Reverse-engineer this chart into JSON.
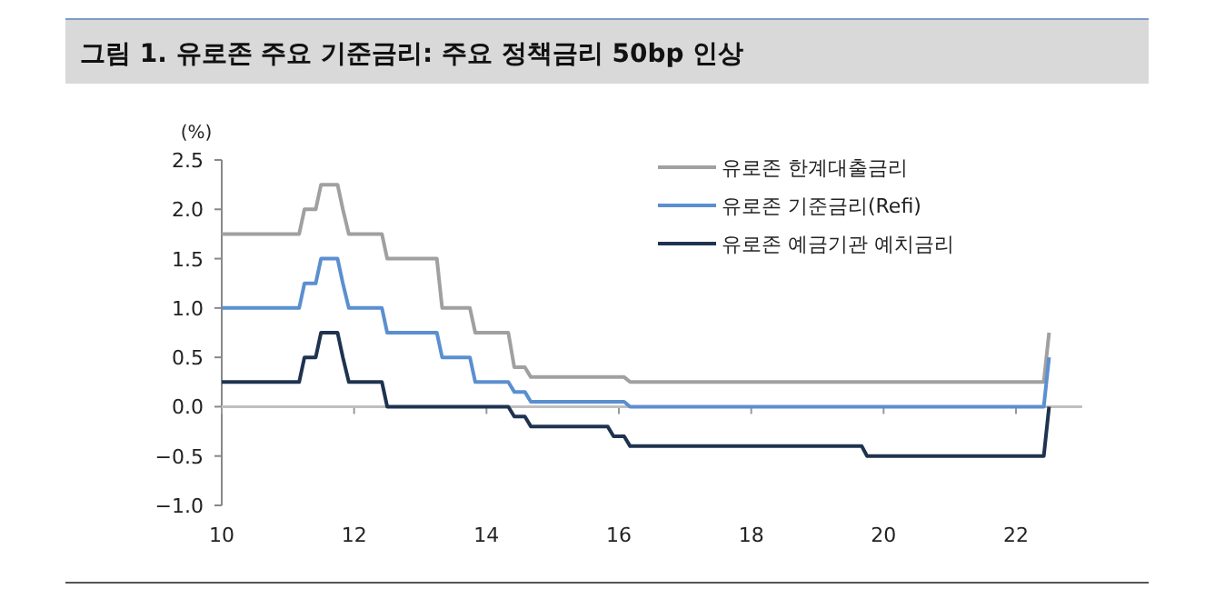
{
  "chart_data": {
    "type": "line",
    "title": "그림 1. 유로존 주요 기준금리: 주요 정책금리 50bp 인상",
    "ylabel": "(%)",
    "xlim": [
      10,
      23
    ],
    "xticks": [
      10,
      12,
      14,
      16,
      18,
      20,
      22
    ],
    "ylim": [
      -1,
      2.5
    ],
    "yticks": [
      {
        "value": 2.5,
        "label": "2.5"
      },
      {
        "value": 2,
        "label": "2.0"
      },
      {
        "value": 1.5,
        "label": "1.5"
      },
      {
        "value": 1,
        "label": "1.0"
      },
      {
        "value": 0.5,
        "label": "0.5"
      },
      {
        "value": 0,
        "label": "0.0"
      },
      {
        "value": -0.5,
        "label": "−0.5"
      },
      {
        "value": -1,
        "label": "−1.0"
      }
    ],
    "grid": false,
    "legend": "top right",
    "line_style": "solid",
    "marker": "none",
    "ref_lines": [
      {
        "axis": "y",
        "value": 0,
        "color": "#bfbfbf"
      }
    ],
    "series": [
      {
        "name": "유로존 한계대출금리",
        "color": "#a0a0a0",
        "x": [
          10,
          11.17,
          11.25,
          11.42,
          11.5,
          11.75,
          11.83,
          11.92,
          12.42,
          12.5,
          13.25,
          13.33,
          13.75,
          13.83,
          14.33,
          14.42,
          14.58,
          14.67,
          16.08,
          16.17,
          22.42,
          22.5
        ],
        "values": [
          1.75,
          1.75,
          2.0,
          2.0,
          2.25,
          2.25,
          2.0,
          1.75,
          1.75,
          1.5,
          1.5,
          1.0,
          1.0,
          0.75,
          0.75,
          0.4,
          0.4,
          0.3,
          0.3,
          0.25,
          0.25,
          0.75
        ]
      },
      {
        "name": "유로존 기준금리(Refi)",
        "color": "#5b8fd0",
        "x": [
          10,
          11.17,
          11.25,
          11.42,
          11.5,
          11.75,
          11.83,
          11.92,
          12.42,
          12.5,
          13.25,
          13.33,
          13.75,
          13.83,
          14.33,
          14.42,
          14.58,
          14.67,
          16.08,
          16.17,
          22.42,
          22.5
        ],
        "values": [
          1.0,
          1.0,
          1.25,
          1.25,
          1.5,
          1.5,
          1.25,
          1.0,
          1.0,
          0.75,
          0.75,
          0.5,
          0.5,
          0.25,
          0.25,
          0.15,
          0.15,
          0.05,
          0.05,
          0.0,
          0.0,
          0.5
        ]
      },
      {
        "name": "유로존 예금기관 예치금리",
        "color": "#1f3350",
        "x": [
          10,
          11.17,
          11.25,
          11.42,
          11.5,
          11.75,
          11.83,
          11.92,
          12.42,
          12.5,
          14.33,
          14.42,
          14.58,
          14.67,
          15.83,
          15.92,
          16.08,
          16.17,
          19.67,
          19.75,
          22.42,
          22.5
        ],
        "values": [
          0.25,
          0.25,
          0.5,
          0.5,
          0.75,
          0.75,
          0.5,
          0.25,
          0.25,
          0.0,
          0.0,
          -0.1,
          -0.1,
          -0.2,
          -0.2,
          -0.3,
          -0.3,
          -0.4,
          -0.4,
          -0.5,
          -0.5,
          0.0
        ]
      }
    ]
  }
}
